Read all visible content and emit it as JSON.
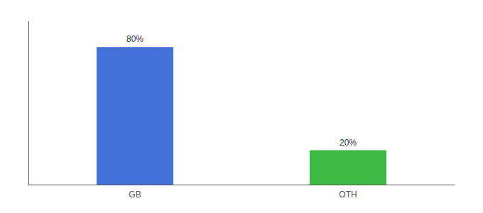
{
  "chart_data": {
    "type": "bar",
    "categories": [
      "GB",
      "OTH"
    ],
    "values": [
      80,
      20
    ],
    "value_labels": [
      "80%",
      "20%"
    ],
    "colors": [
      "#4472D9",
      "#3CB843"
    ],
    "ylim": [
      0,
      95
    ],
    "data_labels": true,
    "tick_labels": "x",
    "grid": false
  }
}
